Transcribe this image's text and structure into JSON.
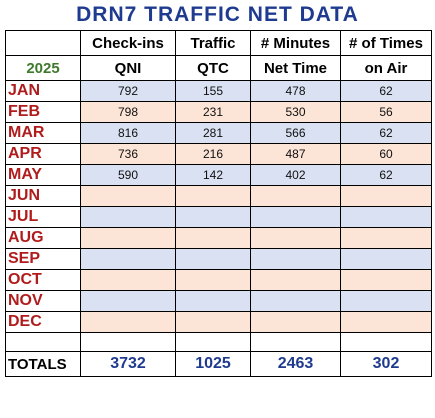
{
  "title": "DRN7  TRAFFIC NET DATA",
  "header": {
    "row1": [
      "",
      "Check-ins",
      "Traffic",
      "# Minutes",
      "# of Times"
    ],
    "year": "2025",
    "row2": [
      "QNI",
      "QTC",
      "Net Time",
      "on Air"
    ]
  },
  "months": [
    {
      "name": "JAN",
      "shade": "blue",
      "values": [
        "792",
        "155",
        "478",
        "62"
      ]
    },
    {
      "name": "FEB",
      "shade": "peach",
      "values": [
        "798",
        "231",
        "530",
        "56"
      ]
    },
    {
      "name": "MAR",
      "shade": "blue",
      "values": [
        "816",
        "281",
        "566",
        "62"
      ]
    },
    {
      "name": "APR",
      "shade": "peach",
      "values": [
        "736",
        "216",
        "487",
        "60"
      ]
    },
    {
      "name": "MAY",
      "shade": "blue",
      "values": [
        "590",
        "142",
        "402",
        "62"
      ]
    },
    {
      "name": "JUN",
      "shade": "peach",
      "values": [
        "",
        "",
        "",
        ""
      ]
    },
    {
      "name": "JUL",
      "shade": "blue",
      "values": [
        "",
        "",
        "",
        ""
      ]
    },
    {
      "name": "AUG",
      "shade": "peach",
      "values": [
        "",
        "",
        "",
        ""
      ]
    },
    {
      "name": "SEP",
      "shade": "blue",
      "values": [
        "",
        "",
        "",
        ""
      ]
    },
    {
      "name": "OCT",
      "shade": "peach",
      "values": [
        "",
        "",
        "",
        ""
      ]
    },
    {
      "name": "NOV",
      "shade": "blue",
      "values": [
        "",
        "",
        "",
        ""
      ]
    },
    {
      "name": "DEC",
      "shade": "peach",
      "values": [
        "",
        "",
        "",
        ""
      ]
    }
  ],
  "totals": {
    "label": "TOTALS",
    "values": [
      "3732",
      "1025",
      "2463",
      "302"
    ]
  },
  "colors": {
    "title": "#1f3b8f",
    "month_label": "#b01c1c",
    "year": "#3f7a2c",
    "row_blue": "#d9e1f2",
    "row_peach": "#fce4d6",
    "totals": "#1f3b8f"
  }
}
